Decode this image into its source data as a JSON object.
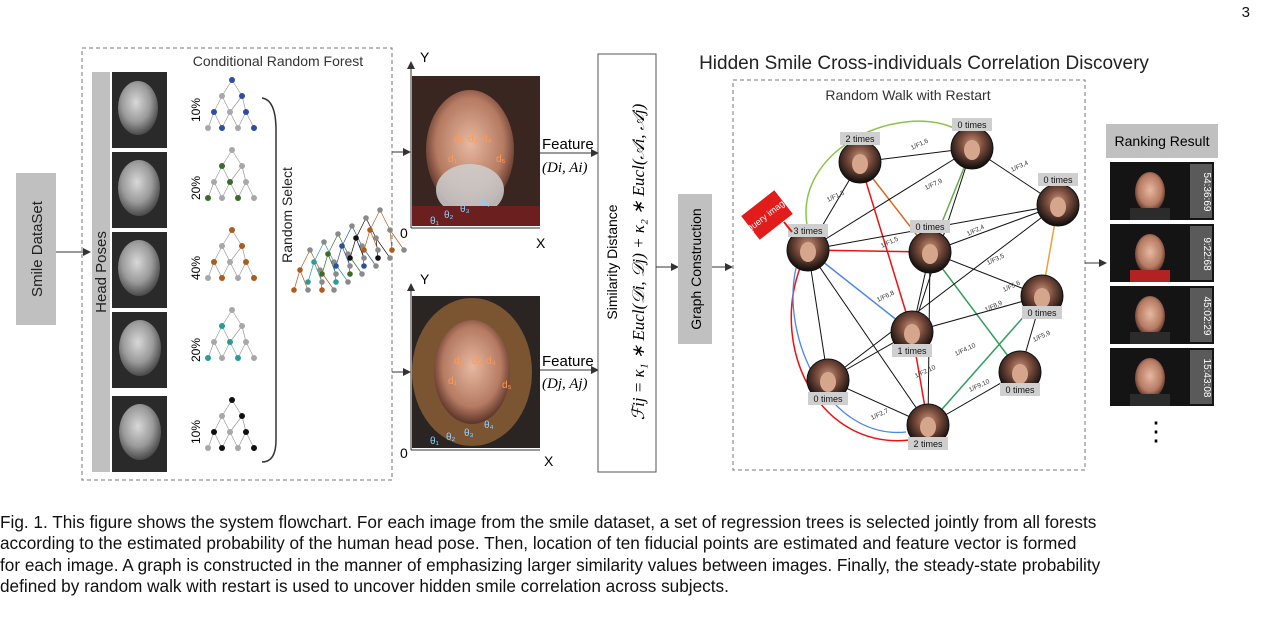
{
  "page_number": "3",
  "dataset_label": "Smile DataSet",
  "head_poses_label": "Head Poses",
  "crf": {
    "title": "Conditional Random Forest",
    "percentages": [
      "10%",
      "20%",
      "40%",
      "20%",
      "10%"
    ],
    "random_select_label": "Random Select"
  },
  "face_plots": {
    "axis_y": "Y",
    "axis_x": "X",
    "origin": "0",
    "landmarks": [
      "d₂",
      "d₃",
      "d₄",
      "d₁",
      "d₅",
      "θ₁",
      "θ₂",
      "θ₃",
      "θ₄"
    ],
    "feature_label": "Feature",
    "feature_top": "(Di, Ai)",
    "feature_bottom": "(Dj, Aj)"
  },
  "similarity": {
    "label": "Similarity Distance",
    "formula": "ℱij = κ₁ ∗ Eucl(𝒟i, 𝒟j) + κ₂ ∗ Eucl(𝒜i, 𝒜j)"
  },
  "graph_construction_label": "Graph Construction",
  "discovery_title": "Hidden Smile Cross-individuals Correlation Discovery",
  "rwr_title": "Random Walk with Restart",
  "query_label": "Query image",
  "nodes": [
    {
      "label": "2 times"
    },
    {
      "label": "0 times"
    },
    {
      "label": "0 times"
    },
    {
      "label": "3 times"
    },
    {
      "label": "0 times"
    },
    {
      "label": "0 times"
    },
    {
      "label": "1 times"
    },
    {
      "label": "0 times"
    },
    {
      "label": "0 times"
    },
    {
      "label": "2 times"
    }
  ],
  "edge_labels": [
    "1/F1,3",
    "1/F1,6",
    "1/F7,9",
    "1/F3,4",
    "1/F1,5",
    "1/F2,4",
    "1/F3,5",
    "1/F5,6",
    "1/F6,8",
    "1/F8,9",
    "1/F9,10",
    "1/F4,10",
    "1/F2,10",
    "1/F5,9",
    "1/F2,7"
  ],
  "ranking_title": "Ranking Result",
  "ranking_timestamps": [
    "54:36:69",
    "9:22:68",
    "45:02:29",
    "15:43:08"
  ],
  "ranking_more": "⋮",
  "caption_lines": [
    "Fig. 1. This figure shows the system flowchart. For each image from the smile dataset, a set of regression trees is selected jointly from all forests",
    "according to the estimated probability of the human head pose. Then, location of ten fiducial points are estimated and feature vector is formed",
    "for each image. A graph is constructed in the manner of emphasizing larger similarity values between images. Finally, the steady-state probability",
    "defined by random walk with restart is used to uncover hidden smile correlation across subjects."
  ]
}
